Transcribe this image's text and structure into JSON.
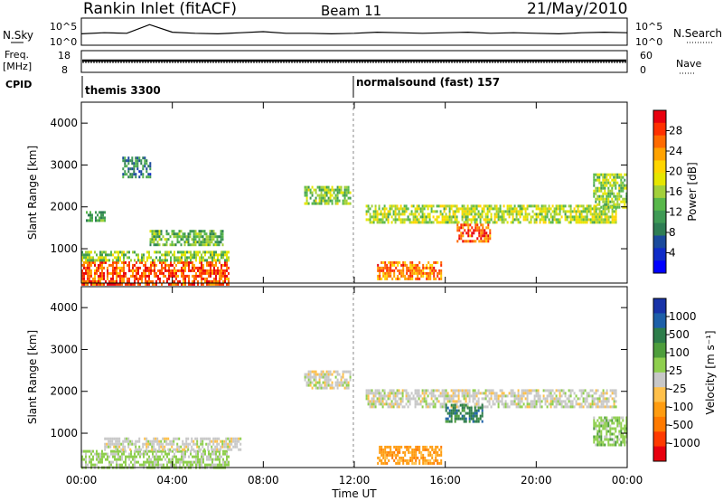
{
  "header": {
    "station": "Rankin Inlet (fitACF)",
    "beam": "Beam 11",
    "date": "21/May/2010"
  },
  "time_axis": {
    "label": "Time UT",
    "ticks": [
      "00:00",
      "04:00",
      "08:00",
      "12:00",
      "16:00",
      "20:00",
      "00:00"
    ],
    "tick_hours": [
      0,
      4,
      8,
      12,
      16,
      20,
      24
    ]
  },
  "top_panels": {
    "nsky_label": "N.Sky",
    "nsky_ticks": [
      "10^5",
      "10^0"
    ],
    "nsearch_label": "N.Search",
    "nsearch_ticks": [
      "10^5",
      "10^0"
    ],
    "freq_label": "Freq.",
    "freq_unit": "[MHz]",
    "freq_ticks": [
      "18",
      "8"
    ],
    "nave_label": "Nave",
    "nave_ticks": [
      "60",
      "0"
    ],
    "cpid_label": "CPID",
    "cpid_segments": [
      {
        "label": "themis 3300",
        "start_hour": 0
      },
      {
        "label": "normalsound (fast) 157",
        "start_hour": 12
      }
    ]
  },
  "power_colorbar": {
    "title": "Power [dB]",
    "ticks": [
      "28",
      "24",
      "20",
      "16",
      "12",
      "8",
      "4"
    ],
    "colors": [
      "#e8000e",
      "#ff3000",
      "#ff6a00",
      "#ffa200",
      "#ffd500",
      "#e6e600",
      "#a2d03a",
      "#58b84a",
      "#3f9a55",
      "#2e7d54",
      "#1a4a9c",
      "#0f2cc8",
      "#0000ff"
    ]
  },
  "velocity_colorbar": {
    "title": "Velocity [m s⁻¹]",
    "ticks": [
      "1000",
      "500",
      "100",
      "25",
      "-25",
      "-100",
      "-500",
      "-1000"
    ],
    "colors": [
      "#1833a8",
      "#1d5fa8",
      "#2d7d4a",
      "#4e9e3c",
      "#8fcf4e",
      "#c8c8c8",
      "#ffc04a",
      "#ff9c10",
      "#ff7a00",
      "#ff3a00",
      "#e8000e"
    ]
  },
  "chart_data": [
    {
      "type": "line",
      "title": "N.Sky",
      "x_range": [
        0,
        24
      ],
      "description_series": [
        {
          "values": [
            2.1,
            2.3,
            2.2,
            3.8,
            2.4,
            2.2,
            2.1,
            2.3,
            2.5,
            2.2,
            2.2,
            2.1,
            2.2,
            2.4,
            2.3,
            2.2,
            2.3,
            2.4,
            2.2,
            2.3,
            2.2,
            2.1,
            2.3,
            2.4,
            2.3
          ]
        }
      ],
      "ylim": [
        0,
        5
      ]
    },
    {
      "type": "heatmap",
      "title": "Power [dB]",
      "ylabel": "Slant Range [km]",
      "xlabel": "Time UT",
      "xlim": [
        0,
        24
      ],
      "ylim": [
        180,
        4500
      ],
      "yticks": [
        1000,
        2000,
        3000,
        4000
      ],
      "colorbar_range": [
        0,
        30
      ],
      "regions": [
        {
          "t0": 0.0,
          "t1": 6.5,
          "r0": 180,
          "r1": 700,
          "value": 26
        },
        {
          "t0": 0.0,
          "t1": 6.5,
          "r0": 700,
          "r1": 950,
          "value": 14
        },
        {
          "t0": 0.2,
          "t1": 1.0,
          "r0": 1650,
          "r1": 1900,
          "value": 10
        },
        {
          "t0": 1.8,
          "t1": 3.0,
          "r0": 2700,
          "r1": 3200,
          "value": 8
        },
        {
          "t0": 3.0,
          "t1": 6.2,
          "r0": 1100,
          "r1": 1450,
          "value": 12
        },
        {
          "t0": 9.8,
          "t1": 11.8,
          "r0": 2050,
          "r1": 2500,
          "value": 14
        },
        {
          "t0": 12.5,
          "t1": 23.5,
          "r0": 1650,
          "r1": 2050,
          "value": 16
        },
        {
          "t0": 16.5,
          "t1": 18.0,
          "r0": 1150,
          "r1": 1600,
          "value": 26
        },
        {
          "t0": 13.0,
          "t1": 15.8,
          "r0": 280,
          "r1": 700,
          "value": 24
        },
        {
          "t0": 22.5,
          "t1": 24.0,
          "r0": 2000,
          "r1": 2800,
          "value": 14
        }
      ]
    },
    {
      "type": "heatmap",
      "title": "Velocity [m s-1]",
      "ylabel": "Slant Range [km]",
      "xlabel": "Time UT",
      "xlim": [
        0,
        24
      ],
      "ylim": [
        180,
        4500
      ],
      "yticks": [
        1000,
        2000,
        3000,
        4000
      ],
      "colorbar_range": [
        -1000,
        1000
      ],
      "regions": [
        {
          "t0": 0.0,
          "t1": 6.5,
          "r0": 180,
          "r1": 600,
          "value": 150
        },
        {
          "t0": 1.0,
          "t1": 7.0,
          "r0": 600,
          "r1": 900,
          "value": 0
        },
        {
          "t0": 9.8,
          "t1": 11.8,
          "r0": 2050,
          "r1": 2500,
          "value": 0
        },
        {
          "t0": 12.5,
          "t1": 23.5,
          "r0": 1650,
          "r1": 2050,
          "value": 0
        },
        {
          "t0": 16.0,
          "t1": 17.6,
          "r0": 1250,
          "r1": 1700,
          "value": 600
        },
        {
          "t0": 13.0,
          "t1": 15.8,
          "r0": 280,
          "r1": 700,
          "value": -400
        },
        {
          "t0": 22.5,
          "t1": 24.0,
          "r0": 700,
          "r1": 1400,
          "value": 200
        }
      ]
    }
  ]
}
